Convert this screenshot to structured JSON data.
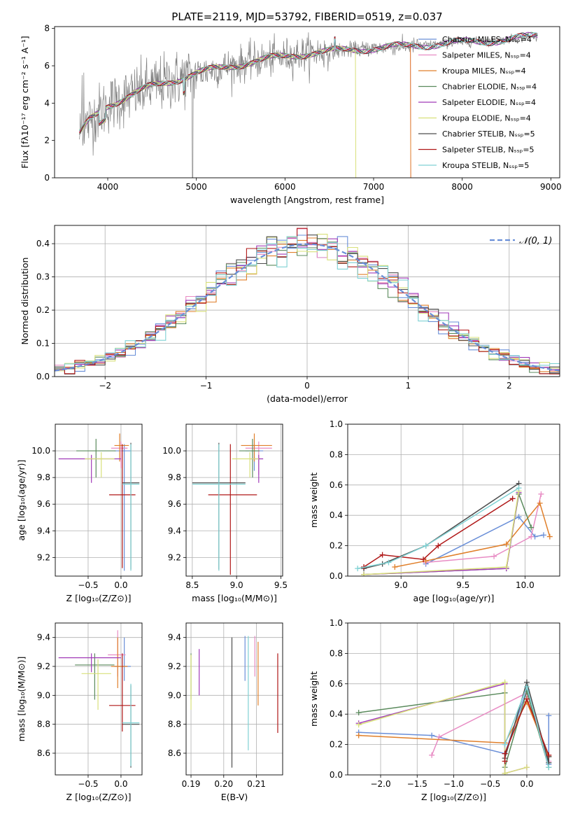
{
  "colors": {
    "chabrier_miles": "#6a8fd8",
    "salpeter_miles": "#e88cc4",
    "kroupa_miles": "#e07f2a",
    "chabrier_elodie": "#5a8a5c",
    "salpeter_elodie": "#a13bb8",
    "kroupa_elodie": "#d8e07a",
    "chabrier_stelib": "#4d4d4d",
    "salpeter_stelib": "#b01818",
    "kroupa_stelib": "#7fd1d3",
    "data": "#808080",
    "normal": "#6a8fd8",
    "grid": "#b0b0b0"
  },
  "chart_data": [
    {
      "id": "spectrum",
      "type": "line",
      "title": "PLATE=2119, MJD=53792, FIBERID=0519, z=0.037",
      "xlabel": "wavelength [Angstrom, rest frame]",
      "ylabel": "Flux [fλ10⁻¹⁷ erg cm⁻² s⁻¹ A⁻¹]",
      "xlim": [
        3400,
        9100
      ],
      "ylim": [
        0,
        8.1
      ],
      "xticks": [
        4000,
        5000,
        6000,
        7000,
        8000,
        9000
      ],
      "yticks": [
        0,
        2,
        4,
        6,
        8
      ],
      "grid": false,
      "legend_position": "top-right",
      "legend": [
        "Chabrier MILES, Nₛₛₚ=4",
        "Salpeter MILES, Nₛₛₚ=4",
        "Kroupa MILES, Nₛₛₚ=4",
        "Chabrier ELODIE, Nₛₛₚ=4",
        "Salpeter ELODIE, Nₛₛₚ=4",
        "Kroupa ELODIE, Nₛₛₚ=4",
        "Chabrier STELIB, Nₛₛₚ=5",
        "Salpeter STELIB, Nₛₛₚ=5",
        "Kroupa STELIB, Nₛₛₚ=5"
      ],
      "continuum": {
        "x": [
          3680,
          3800,
          3900,
          4000,
          4200,
          4500,
          4800,
          5000,
          5300,
          5600,
          6000,
          6300,
          6600,
          7000,
          7400,
          7800,
          8200,
          8600,
          8850
        ],
        "y": [
          2.3,
          3.1,
          3.5,
          3.9,
          4.3,
          4.9,
          5.3,
          5.6,
          5.9,
          6.2,
          6.5,
          6.7,
          6.8,
          6.95,
          7.05,
          7.2,
          7.3,
          7.45,
          7.6
        ]
      },
      "model_dropouts": [
        {
          "model": "kroupa_elodie",
          "x_start": 6800,
          "x_end": 9100
        },
        {
          "model": "kroupa_miles",
          "x_start": 7420,
          "x_end": 9100
        },
        {
          "model": "salpeter_miles",
          "x_start": 7420,
          "x_end": 9100
        }
      ]
    },
    {
      "id": "residuals",
      "type": "line",
      "xlabel": "(data-model)/error",
      "ylabel": "Normed distribution",
      "xlim": [
        -2.5,
        2.5
      ],
      "ylim": [
        0,
        0.455
      ],
      "xticks": [
        -2,
        -1,
        0,
        1,
        2
      ],
      "yticks": [
        0.0,
        0.1,
        0.2,
        0.3,
        0.4
      ],
      "grid": true,
      "bin_width": 0.1,
      "legend_position": "top-right",
      "legend": [
        "𝒩(0, 1)"
      ]
    },
    {
      "id": "age-vs-Z",
      "type": "scatter",
      "xlabel": "Z [log₁₀(Z/Z⊙)]",
      "ylabel": "age  [log₁₀(age/yr)]",
      "xlim": [
        -1.0,
        0.32
      ],
      "ylim": [
        9.06,
        10.2
      ],
      "xticks": [
        -0.5,
        0.0
      ],
      "yticks": [
        9.2,
        9.4,
        9.6,
        9.8,
        10.0
      ],
      "grid": true,
      "points": [
        {
          "model": "chabrier_miles",
          "x": 0.05,
          "y": 10.0,
          "xerr": [
            0.15,
            0.1
          ],
          "yerr": [
            0.9,
            0.05
          ]
        },
        {
          "model": "salpeter_miles",
          "x": 0.0,
          "y": 10.02,
          "xerr": [
            0.15,
            0.1
          ],
          "yerr": [
            0.15,
            0.05
          ]
        },
        {
          "model": "kroupa_miles",
          "x": -0.02,
          "y": 10.04,
          "xerr": [
            0.08,
            0.14
          ],
          "yerr": [
            0.12,
            0.09
          ]
        },
        {
          "model": "chabrier_elodie",
          "x": -0.38,
          "y": 10.0,
          "xerr": [
            0.3,
            0.3
          ],
          "yerr": [
            0.2,
            0.09
          ]
        },
        {
          "model": "salpeter_elodie",
          "x": -0.45,
          "y": 9.94,
          "xerr": [
            0.5,
            0.45
          ],
          "yerr": [
            0.18,
            0.03
          ]
        },
        {
          "model": "kroupa_elodie",
          "x": -0.3,
          "y": 9.94,
          "xerr": [
            0.25,
            0.2
          ],
          "yerr": [
            0.14,
            0.05
          ]
        },
        {
          "model": "chabrier_stelib",
          "x": 0.15,
          "y": 9.76,
          "xerr": [
            0.13,
            0.13
          ],
          "yerr": [
            0.65,
            0.3
          ]
        },
        {
          "model": "salpeter_stelib",
          "x": 0.02,
          "y": 9.67,
          "xerr": [
            0.2,
            0.2
          ],
          "yerr": [
            0.55,
            0.38
          ]
        },
        {
          "model": "kroupa_stelib",
          "x": 0.15,
          "y": 9.75,
          "xerr": [
            0.13,
            0.13
          ],
          "yerr": [
            0.65,
            0.3
          ]
        }
      ]
    },
    {
      "id": "age-vs-mass",
      "type": "scatter",
      "xlabel": "mass [log₁₀(M/M⊙)]",
      "ylabel": "",
      "xlim": [
        8.43,
        9.52
      ],
      "ylim": [
        9.06,
        10.2
      ],
      "xticks": [
        8.5,
        9.0,
        9.5
      ],
      "yticks": [
        9.2,
        9.4,
        9.6,
        9.8,
        10.0
      ],
      "grid": true,
      "points": [
        {
          "model": "chabrier_miles",
          "x": 9.2,
          "y": 10.0,
          "xerr": [
            0.1,
            0.1
          ],
          "yerr": [
            0.15,
            0.05
          ]
        },
        {
          "model": "salpeter_miles",
          "x": 9.25,
          "y": 10.02,
          "xerr": [
            0.15,
            0.15
          ],
          "yerr": [
            0.2,
            0.05
          ]
        },
        {
          "model": "kroupa_miles",
          "x": 9.2,
          "y": 10.04,
          "xerr": [
            0.15,
            0.2
          ],
          "yerr": [
            0.12,
            0.09
          ]
        },
        {
          "model": "chabrier_elodie",
          "x": 9.18,
          "y": 10.0,
          "xerr": [
            0.15,
            0.08
          ],
          "yerr": [
            0.2,
            0.09
          ]
        },
        {
          "model": "salpeter_elodie",
          "x": 9.25,
          "y": 9.94,
          "xerr": [
            0.1,
            0.05
          ],
          "yerr": [
            0.18,
            0.03
          ]
        },
        {
          "model": "kroupa_elodie",
          "x": 9.15,
          "y": 9.94,
          "xerr": [
            0.2,
            0.1
          ],
          "yerr": [
            0.14,
            0.05
          ]
        },
        {
          "model": "chabrier_stelib",
          "x": 8.8,
          "y": 9.76,
          "xerr": [
            0.3,
            0.3
          ],
          "yerr": [
            0.65,
            0.3
          ]
        },
        {
          "model": "salpeter_stelib",
          "x": 8.93,
          "y": 9.67,
          "xerr": [
            0.25,
            0.3
          ],
          "yerr": [
            0.6,
            0.38
          ]
        },
        {
          "model": "kroupa_stelib",
          "x": 8.8,
          "y": 9.75,
          "xerr": [
            0.3,
            0.3
          ],
          "yerr": [
            0.65,
            0.3
          ]
        }
      ]
    },
    {
      "id": "mass-weight-vs-age",
      "type": "line",
      "xlabel": "age  [log₁₀(age/yr)]",
      "ylabel": "mass weight",
      "xlim": [
        8.57,
        10.28
      ],
      "ylim": [
        0,
        1.0
      ],
      "xticks": [
        9.0,
        9.5,
        10.0
      ],
      "yticks": [
        0.0,
        0.2,
        0.4,
        0.6,
        0.8,
        1.0
      ],
      "grid": true,
      "series": [
        {
          "model": "chabrier_miles",
          "x": [
            9.2,
            9.95,
            10.08,
            10.15
          ],
          "y": [
            0.08,
            0.39,
            0.26,
            0.27
          ]
        },
        {
          "model": "salpeter_miles",
          "x": [
            9.2,
            9.75,
            10.05,
            10.13
          ],
          "y": [
            0.09,
            0.13,
            0.26,
            0.54
          ]
        },
        {
          "model": "kroupa_miles",
          "x": [
            8.95,
            9.2,
            9.85,
            10.12,
            10.2
          ],
          "y": [
            0.06,
            0.1,
            0.21,
            0.48,
            0.26
          ]
        },
        {
          "model": "chabrier_elodie",
          "x": [
            8.7,
            9.85,
            9.95,
            10.05
          ],
          "y": [
            0.01,
            0.05,
            0.54,
            0.32
          ]
        },
        {
          "model": "salpeter_elodie",
          "x": [
            8.7,
            9.85,
            9.95
          ],
          "y": [
            0.01,
            0.05,
            0.55
          ]
        },
        {
          "model": "kroupa_elodie",
          "x": [
            8.7,
            9.85,
            9.95
          ],
          "y": [
            0.01,
            0.06,
            0.56
          ]
        },
        {
          "model": "chabrier_stelib",
          "x": [
            8.7,
            8.85,
            9.2,
            9.95
          ],
          "y": [
            0.05,
            0.08,
            0.2,
            0.61
          ]
        },
        {
          "model": "salpeter_stelib",
          "x": [
            8.7,
            8.85,
            9.18,
            9.3,
            9.9
          ],
          "y": [
            0.06,
            0.14,
            0.11,
            0.2,
            0.51
          ]
        },
        {
          "model": "kroupa_stelib",
          "x": [
            8.65,
            8.9,
            9.2,
            9.95
          ],
          "y": [
            0.05,
            0.09,
            0.2,
            0.58
          ]
        }
      ]
    },
    {
      "id": "mass-vs-Z",
      "type": "scatter",
      "xlabel": "Z [log₁₀(Z/Z⊙)]",
      "ylabel": "mass [log₁₀(M/M⊙)]",
      "xlim": [
        -1.0,
        0.32
      ],
      "ylim": [
        8.45,
        9.5
      ],
      "xticks": [
        -0.5,
        0.0
      ],
      "yticks": [
        8.6,
        8.8,
        9.0,
        9.2,
        9.4
      ],
      "grid": true,
      "points": [
        {
          "model": "chabrier_miles",
          "x": 0.05,
          "y": 9.2,
          "xerr": [
            0.15,
            0.1
          ],
          "yerr": [
            0.1,
            0.2
          ]
        },
        {
          "model": "salpeter_miles",
          "x": -0.05,
          "y": 9.28,
          "xerr": [
            0.15,
            0.12
          ],
          "yerr": [
            0.15,
            0.17
          ]
        },
        {
          "model": "kroupa_miles",
          "x": -0.05,
          "y": 9.2,
          "xerr": [
            0.1,
            0.15
          ],
          "yerr": [
            0.15,
            0.2
          ]
        },
        {
          "model": "chabrier_elodie",
          "x": -0.4,
          "y": 9.21,
          "xerr": [
            0.3,
            0.3
          ],
          "yerr": [
            0.24,
            0.08
          ]
        },
        {
          "model": "salpeter_elodie",
          "x": -0.45,
          "y": 9.26,
          "xerr": [
            0.5,
            0.45
          ],
          "yerr": [
            0.1,
            0.03
          ]
        },
        {
          "model": "kroupa_elodie",
          "x": -0.35,
          "y": 9.15,
          "xerr": [
            0.25,
            0.2
          ],
          "yerr": [
            0.25,
            0.1
          ]
        },
        {
          "model": "chabrier_stelib",
          "x": 0.15,
          "y": 8.8,
          "xerr": [
            0.13,
            0.13
          ],
          "yerr": [
            0.3,
            0.27
          ]
        },
        {
          "model": "salpeter_stelib",
          "x": 0.02,
          "y": 8.93,
          "xerr": [
            0.2,
            0.2
          ],
          "yerr": [
            0.18,
            0.36
          ]
        },
        {
          "model": "kroupa_stelib",
          "x": 0.15,
          "y": 8.81,
          "xerr": [
            0.13,
            0.13
          ],
          "yerr": [
            0.3,
            0.27
          ]
        }
      ]
    },
    {
      "id": "mass-vs-EBV",
      "type": "scatter",
      "xlabel": "E(B-V)",
      "ylabel": "",
      "xlim": [
        0.1885,
        0.218
      ],
      "ylim": [
        8.45,
        9.5
      ],
      "xticks": [
        0.19,
        0.2,
        0.21
      ],
      "yticks": [
        8.6,
        8.8,
        9.0,
        9.2,
        9.4
      ],
      "grid": true,
      "points": [
        {
          "model": "chabrier_miles",
          "x": 0.2065,
          "y": 9.2,
          "xerr": [
            0,
            0
          ],
          "yerr": [
            0.1,
            0.21
          ]
        },
        {
          "model": "salpeter_miles",
          "x": 0.2095,
          "y": 9.28,
          "xerr": [
            0,
            0
          ],
          "yerr": [
            0.15,
            0.13
          ]
        },
        {
          "model": "kroupa_miles",
          "x": 0.2105,
          "y": 9.2,
          "xerr": [
            0,
            0
          ],
          "yerr": [
            0.27,
            0.17
          ]
        },
        {
          "model": "chabrier_elodie",
          "x": 0.19,
          "y": 9.21,
          "xerr": [
            0,
            0
          ],
          "yerr": [
            0.24,
            0.08
          ]
        },
        {
          "model": "salpeter_elodie",
          "x": 0.1925,
          "y": 9.15,
          "xerr": [
            0,
            0
          ],
          "yerr": [
            0.15,
            0.17
          ]
        },
        {
          "model": "kroupa_elodie",
          "x": 0.19,
          "y": 9.1,
          "xerr": [
            0,
            0
          ],
          "yerr": [
            0.2,
            0.18
          ]
        },
        {
          "model": "chabrier_stelib",
          "x": 0.2025,
          "y": 8.95,
          "xerr": [
            0,
            0
          ],
          "yerr": [
            0.45,
            0.45
          ]
        },
        {
          "model": "salpeter_stelib",
          "x": 0.2165,
          "y": 9.02,
          "xerr": [
            0,
            0
          ],
          "yerr": [
            0.28,
            0.27
          ]
        },
        {
          "model": "kroupa_stelib",
          "x": 0.2075,
          "y": 9.0,
          "xerr": [
            0,
            0
          ],
          "yerr": [
            0.38,
            0.41
          ]
        }
      ]
    },
    {
      "id": "mass-weight-vs-Z",
      "type": "line",
      "xlabel": "Z [log₁₀(Z/Z⊙)]",
      "ylabel": "mass weight",
      "xlim": [
        -2.45,
        0.45
      ],
      "ylim": [
        0,
        1.0
      ],
      "xticks": [
        -2.0,
        -1.5,
        -1.0,
        -0.5,
        0.0
      ],
      "yticks": [
        0.0,
        0.2,
        0.4,
        0.6,
        0.8,
        1.0
      ],
      "grid": true,
      "series": [
        {
          "model": "chabrier_miles",
          "x": [
            -2.3,
            -1.3,
            -0.3,
            0.0,
            0.3,
            0.3
          ],
          "y": [
            0.28,
            0.26,
            0.14,
            0.56,
            0.07,
            0.39
          ]
        },
        {
          "model": "salpeter_miles",
          "x": [
            -1.3,
            -1.2,
            0.0,
            0.3
          ],
          "y": [
            0.13,
            0.25,
            0.54,
            0.09
          ]
        },
        {
          "model": "kroupa_miles",
          "x": [
            -2.3,
            -0.3,
            0.0,
            0.3
          ],
          "y": [
            0.26,
            0.21,
            0.48,
            0.12
          ]
        },
        {
          "model": "chabrier_elodie",
          "x": [
            -2.3,
            -0.3,
            -0.3,
            0.0,
            0.3
          ],
          "y": [
            0.41,
            0.54,
            0.05,
            0.55,
            0.05
          ]
        },
        {
          "model": "salpeter_elodie",
          "x": [
            -2.3,
            -0.3,
            -0.3,
            0.0
          ],
          "y": [
            0.34,
            0.6,
            0.01,
            0.05
          ]
        },
        {
          "model": "kroupa_elodie",
          "x": [
            -2.3,
            -0.3,
            -0.3,
            0.0
          ],
          "y": [
            0.33,
            0.61,
            0.01,
            0.05
          ]
        },
        {
          "model": "chabrier_stelib",
          "x": [
            -0.3,
            0.0,
            0.3,
            0.3
          ],
          "y": [
            0.11,
            0.61,
            0.08,
            0.12
          ]
        },
        {
          "model": "salpeter_stelib",
          "x": [
            -0.3,
            -0.3,
            0.0,
            0.3
          ],
          "y": [
            0.09,
            0.14,
            0.5,
            0.13
          ]
        },
        {
          "model": "kroupa_stelib",
          "x": [
            -0.3,
            0.0,
            0.3
          ],
          "y": [
            0.2,
            0.58,
            0.05
          ]
        }
      ]
    }
  ]
}
